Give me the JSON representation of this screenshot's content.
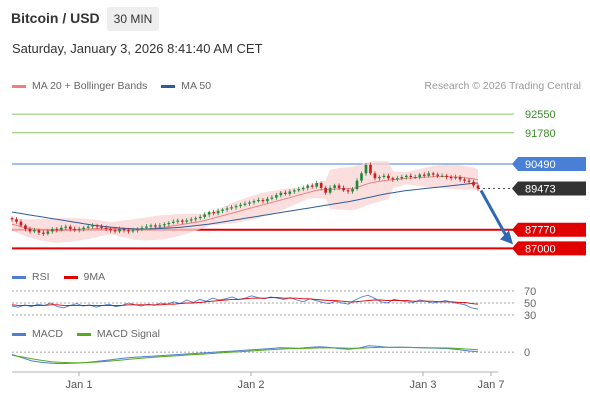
{
  "header": {
    "title": "Bitcoin / USD",
    "interval": "30 MIN",
    "datetime": "Saturday, January 3, 2026 8:41:40 AM CET",
    "credit": "Research © 2026 Trading Central"
  },
  "legends": {
    "main": [
      {
        "label": "MA 20 + Bollinger Bands",
        "color": "#f08080"
      },
      {
        "label": "MA 50",
        "color": "#2f5c9e"
      }
    ],
    "rsi": [
      {
        "label": "RSI",
        "color": "#4f7fd4"
      },
      {
        "label": "9MA",
        "color": "#e00000"
      }
    ],
    "macd": [
      {
        "label": "MACD",
        "color": "#4f7fd4"
      },
      {
        "label": "MACD Signal",
        "color": "#55aa22"
      }
    ]
  },
  "colors": {
    "up": "#1e8a3c",
    "down": "#c81e1e",
    "resistance": "#8cc66a",
    "pivot": "#4a7fd6",
    "support": "#e00000",
    "arrow": "#2f68b4",
    "bands": "#f9d4d4",
    "ma20": "#f08080",
    "ma50": "#2f5c9e"
  },
  "chart_data": [
    {
      "type": "line",
      "panel": "price",
      "ylim": [
        86600,
        93300
      ],
      "x_ticks": [
        "Jan 1",
        "Jan 2",
        "Jan 3",
        "Jan 7"
      ],
      "levels": [
        {
          "label": "92550",
          "value": 92550,
          "role": "resistance"
        },
        {
          "label": "91780",
          "value": 91780,
          "role": "resistance"
        },
        {
          "label": "90490",
          "value": 90490,
          "role": "pivot"
        },
        {
          "label": "89473",
          "value": 89473,
          "role": "last"
        },
        {
          "label": "87770",
          "value": 87770,
          "role": "support"
        },
        {
          "label": "87000",
          "value": 87000,
          "role": "support"
        }
      ],
      "target": 87000,
      "close_series": [
        88200,
        88100,
        87950,
        87800,
        87700,
        87750,
        87650,
        87600,
        87700,
        87800,
        87750,
        87850,
        87900,
        87800,
        87750,
        87800,
        87850,
        87900,
        87950,
        87900,
        87850,
        87800,
        87750,
        87700,
        87800,
        87750,
        87700,
        87750,
        87800,
        87850,
        87900,
        87950,
        87900,
        87950,
        88000,
        88050,
        88100,
        88150,
        88100,
        88150,
        88200,
        88250,
        88300,
        88400,
        88500,
        88450,
        88550,
        88600,
        88650,
        88700,
        88750,
        88800,
        88850,
        88900,
        88950,
        89000,
        88950,
        89050,
        89100,
        89200,
        89300,
        89250,
        89350,
        89400,
        89450,
        89500,
        89600,
        89550,
        89700,
        89500,
        89300,
        89500,
        89600,
        89500,
        89400,
        89350,
        89450,
        89800,
        90100,
        90450,
        90100,
        89900,
        89950,
        90000,
        89900,
        89850,
        89900,
        89950,
        90000,
        89950,
        89950,
        90050,
        90000,
        90100,
        90050,
        90000,
        90000,
        89950,
        89900,
        89950,
        89850,
        89800,
        89750,
        89600,
        89473
      ],
      "ma20": [
        88000,
        87950,
        87900,
        87850,
        87820,
        87800,
        87780,
        87760,
        87740,
        87730,
        87730,
        87740,
        87750,
        87760,
        87770,
        87780,
        87790,
        87800,
        87810,
        87820,
        87830,
        87830,
        87830,
        87820,
        87810,
        87800,
        87790,
        87780,
        87780,
        87790,
        87800,
        87820,
        87840,
        87860,
        87880,
        87900,
        87930,
        87960,
        87990,
        88020,
        88050,
        88080,
        88110,
        88150,
        88200,
        88250,
        88300,
        88350,
        88400,
        88450,
        88500,
        88550,
        88600,
        88650,
        88700,
        88750,
        88800,
        88850,
        88900,
        88950,
        89000,
        89050,
        89100,
        89150,
        89200,
        89250,
        89300,
        89350,
        89400,
        89420,
        89430,
        89440,
        89450,
        89460,
        89470,
        89470,
        89480,
        89520,
        89580,
        89650,
        89700,
        89740,
        89770,
        89800,
        89820,
        89840,
        89860,
        89880,
        89900,
        89910,
        89920,
        89930,
        89940,
        89950,
        89960,
        89970,
        89970,
        89970,
        89960,
        89950,
        89940,
        89920,
        89900,
        89870,
        89840
      ],
      "ma50": [
        88500,
        88470,
        88440,
        88410,
        88380,
        88350,
        88320,
        88290,
        88260,
        88230,
        88200,
        88170,
        88140,
        88110,
        88080,
        88050,
        88020,
        87990,
        87960,
        87940,
        87920,
        87900,
        87880,
        87860,
        87840,
        87830,
        87820,
        87810,
        87800,
        87800,
        87800,
        87800,
        87810,
        87820,
        87830,
        87840,
        87850,
        87860,
        87880,
        87900,
        87920,
        87940,
        87960,
        87980,
        88000,
        88030,
        88060,
        88090,
        88120,
        88150,
        88180,
        88210,
        88240,
        88270,
        88300,
        88330,
        88360,
        88390,
        88420,
        88450,
        88480,
        88510,
        88540,
        88570,
        88600,
        88630,
        88660,
        88690,
        88720,
        88750,
        88780,
        88810,
        88840,
        88870,
        88900,
        88930,
        88960,
        89000,
        89040,
        89080,
        89120,
        89160,
        89200,
        89240,
        89270,
        89300,
        89330,
        89360,
        89390,
        89410,
        89430,
        89450,
        89470,
        89490,
        89510,
        89530,
        89550,
        89570,
        89590,
        89610,
        89630,
        89650,
        89670,
        89690,
        89700
      ]
    },
    {
      "type": "line",
      "panel": "rsi",
      "ylim": [
        25,
        75
      ],
      "y_ticks": [
        "70",
        "50",
        "30"
      ],
      "y_tick_values": [
        70,
        50,
        30
      ],
      "series": [
        {
          "name": "RSI",
          "values": [
            45,
            43,
            47,
            44,
            48,
            46,
            50,
            44,
            42,
            46,
            49,
            45,
            47,
            43,
            46,
            48,
            44,
            46,
            50,
            47,
            45,
            48,
            46,
            50,
            48,
            52,
            49,
            55,
            51,
            56,
            53,
            58,
            55,
            57,
            60,
            56,
            58,
            62,
            59,
            57,
            60,
            58,
            56,
            59,
            55,
            52,
            57,
            54,
            51,
            49,
            53,
            50,
            48,
            55,
            60,
            63,
            58,
            52,
            50,
            56,
            54,
            52,
            51,
            55,
            53,
            50,
            52,
            54,
            51,
            49,
            47,
            42,
            40
          ]
        },
        {
          "name": "9MA",
          "values": [
            47,
            46,
            46,
            46,
            46,
            46,
            47,
            47,
            46,
            46,
            46,
            46,
            46,
            46,
            46,
            46,
            46,
            46,
            47,
            47,
            47,
            47,
            47,
            47,
            48,
            48,
            49,
            50,
            50,
            51,
            52,
            53,
            54,
            55,
            56,
            56,
            57,
            58,
            58,
            58,
            59,
            59,
            58,
            58,
            58,
            57,
            57,
            56,
            55,
            54,
            54,
            53,
            52,
            52,
            53,
            54,
            55,
            55,
            54,
            54,
            54,
            54,
            53,
            53,
            53,
            53,
            52,
            52,
            52,
            51,
            51,
            49,
            48
          ]
        }
      ]
    },
    {
      "type": "line",
      "panel": "macd",
      "ylim": [
        -100,
        45
      ],
      "y_ticks": [
        "0"
      ],
      "y_tick_values": [
        0
      ],
      "series": [
        {
          "name": "MACD",
          "values": [
            -15,
            -35,
            -55,
            -65,
            -70,
            -72,
            -70,
            -68,
            -62,
            -55,
            -48,
            -40,
            -34,
            -30,
            -26,
            -22,
            -18,
            -14,
            -10,
            -6,
            -2,
            2,
            6,
            10,
            14,
            18,
            22,
            28,
            26,
            24,
            30,
            34,
            30,
            22,
            18,
            26,
            40,
            36,
            30,
            32,
            30,
            28,
            26,
            24,
            22,
            16,
            8,
            2
          ]
        },
        {
          "name": "MACD Signal",
          "values": [
            -20,
            -30,
            -42,
            -52,
            -60,
            -65,
            -67,
            -67,
            -65,
            -61,
            -56,
            -50,
            -44,
            -39,
            -34,
            -29,
            -25,
            -21,
            -17,
            -13,
            -9,
            -5,
            -1,
            3,
            7,
            11,
            15,
            19,
            22,
            23,
            25,
            27,
            28,
            27,
            25,
            25,
            28,
            30,
            30,
            30,
            30,
            29,
            28,
            27,
            26,
            23,
            19,
            15
          ]
        }
      ]
    }
  ]
}
